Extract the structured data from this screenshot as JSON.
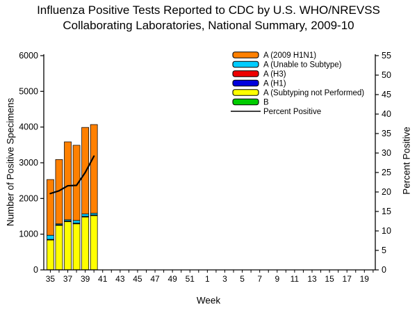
{
  "title": {
    "line1": "Influenza Positive Tests Reported to CDC by U.S. WHO/NREVSS",
    "line2": "Collaborating Laboratories, National Summary, 2009-10"
  },
  "chart_data": {
    "type": "bar",
    "subtype": "stacked-bars-with-percent-line",
    "x_label": "Week",
    "weeks_all": [
      35,
      36,
      37,
      38,
      39,
      40,
      41,
      42,
      43,
      44,
      45,
      46,
      47,
      48,
      49,
      50,
      51,
      52,
      1,
      2,
      3,
      4,
      5,
      6,
      7,
      8,
      9,
      10,
      11,
      12,
      13,
      14,
      15,
      16,
      17,
      18,
      19,
      20
    ],
    "labeled_weeks": [
      35,
      37,
      39,
      41,
      43,
      45,
      47,
      49,
      51,
      1,
      3,
      5,
      7,
      9,
      11,
      13,
      15,
      17,
      19
    ],
    "weeks_with_data": [
      35,
      36,
      37,
      38,
      39,
      40
    ],
    "stack_order_bottom_to_top": [
      "B",
      "A (Subtyping not Performed)",
      "A (H1)",
      "A (H3)",
      "A (Unable to Subtype)",
      "A (2009 H1N1)"
    ],
    "series": [
      {
        "name": "A (2009 H1N1)",
        "color": "#FF8000",
        "values": [
          1560,
          1800,
          2180,
          2105,
          2425,
          2485
        ]
      },
      {
        "name": "A (Unable to Subtype)",
        "color": "#00CCFF",
        "values": [
          115,
          25,
          35,
          75,
          65,
          45
        ]
      },
      {
        "name": "A (H3)",
        "color": "#EE0000",
        "values": [
          10,
          10,
          10,
          10,
          10,
          10
        ]
      },
      {
        "name": "A (H1)",
        "color": "#0000DD",
        "values": [
          10,
          10,
          10,
          10,
          10,
          10
        ]
      },
      {
        "name": "A (Subtyping not Performed)",
        "color": "#FFFF00",
        "values": [
          830,
          1240,
          1345,
          1285,
          1475,
          1515
        ]
      },
      {
        "name": "B",
        "color": "#00CC00",
        "values": [
          5,
          5,
          5,
          5,
          5,
          5
        ]
      }
    ],
    "bar_totals": [
      2530,
      3090,
      3585,
      3490,
      3990,
      4070
    ],
    "line_series": {
      "name": "Percent Positive",
      "color": "#000000",
      "values": [
        19.6,
        20.3,
        21.6,
        21.7,
        25.0,
        29.2
      ]
    },
    "left_axis": {
      "label": "Number of Positive Specimens",
      "min": 0,
      "max": 6000,
      "step": 1000
    },
    "right_axis": {
      "label": "Percent Positive",
      "min": 0,
      "max": 55,
      "step": 5
    },
    "legend_order": [
      "A (2009 H1N1)",
      "A (Unable to Subtype)",
      "A (H3)",
      "A (H1)",
      "A (Subtyping not Performed)",
      "B",
      "Percent Positive"
    ],
    "grid": "off",
    "legend_position": "top-right-inside"
  }
}
